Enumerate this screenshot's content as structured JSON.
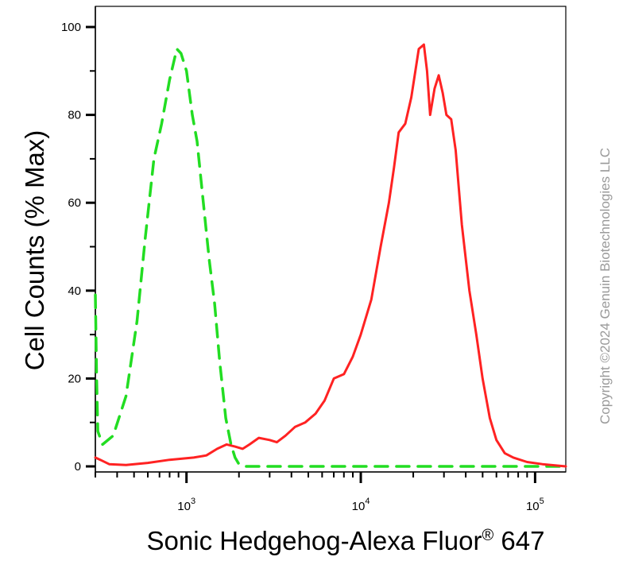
{
  "chart_data": {
    "type": "line",
    "title": "",
    "xlabel_main": "Sonic Hedgehog-Alexa Fluor",
    "xlabel_sup": "®",
    "xlabel_tail": " 647",
    "ylabel": "Cell Counts (% Max)",
    "x_scale": "log",
    "xlim": [
      300,
      150000
    ],
    "ylim": [
      0,
      105
    ],
    "yticks": [
      0,
      20,
      40,
      60,
      80,
      100
    ],
    "yticklabels": [
      "0",
      "20",
      "40",
      "60",
      "80",
      "100"
    ],
    "xticks": [
      1000,
      10000,
      100000
    ],
    "xticklabels": [
      {
        "base": "10",
        "exp": "3"
      },
      {
        "base": "10",
        "exp": "4"
      },
      {
        "base": "10",
        "exp": "5"
      }
    ],
    "grid": false,
    "series": [
      {
        "style": "dashed",
        "color": "#22dd22",
        "points": [
          [
            300,
            39
          ],
          [
            305,
            20
          ],
          [
            310,
            8
          ],
          [
            330,
            5
          ],
          [
            380,
            7
          ],
          [
            450,
            16
          ],
          [
            520,
            33
          ],
          [
            580,
            52
          ],
          [
            650,
            70
          ],
          [
            720,
            78
          ],
          [
            800,
            88
          ],
          [
            880,
            95
          ],
          [
            930,
            94
          ],
          [
            1000,
            90
          ],
          [
            1080,
            80
          ],
          [
            1150,
            74
          ],
          [
            1250,
            60
          ],
          [
            1350,
            47
          ],
          [
            1450,
            37
          ],
          [
            1550,
            24
          ],
          [
            1680,
            11
          ],
          [
            1800,
            5
          ],
          [
            1900,
            2
          ],
          [
            2000,
            0.5
          ],
          [
            2200,
            0
          ],
          [
            150000,
            0
          ]
        ]
      },
      {
        "style": "solid",
        "color": "#ff2222",
        "points": [
          [
            300,
            2
          ],
          [
            320,
            1.5
          ],
          [
            360,
            0.5
          ],
          [
            450,
            0.3
          ],
          [
            600,
            0.8
          ],
          [
            800,
            1.5
          ],
          [
            1100,
            2
          ],
          [
            1300,
            2.5
          ],
          [
            1500,
            4
          ],
          [
            1700,
            5
          ],
          [
            1900,
            4.5
          ],
          [
            2100,
            4
          ],
          [
            2300,
            5
          ],
          [
            2600,
            6.5
          ],
          [
            3000,
            6
          ],
          [
            3300,
            5.5
          ],
          [
            3700,
            7
          ],
          [
            4200,
            9
          ],
          [
            4800,
            10
          ],
          [
            5500,
            12
          ],
          [
            6200,
            15
          ],
          [
            7000,
            20
          ],
          [
            8000,
            21
          ],
          [
            9000,
            25
          ],
          [
            10000,
            30
          ],
          [
            11500,
            38
          ],
          [
            13000,
            50
          ],
          [
            14500,
            60
          ],
          [
            15500,
            68
          ],
          [
            16500,
            76
          ],
          [
            18000,
            78
          ],
          [
            19500,
            84
          ],
          [
            21500,
            95
          ],
          [
            23000,
            96
          ],
          [
            24000,
            90
          ],
          [
            25000,
            80
          ],
          [
            26500,
            86
          ],
          [
            28000,
            89
          ],
          [
            29500,
            85
          ],
          [
            31000,
            80
          ],
          [
            33000,
            79
          ],
          [
            35000,
            72
          ],
          [
            38000,
            55
          ],
          [
            42000,
            40
          ],
          [
            46000,
            30
          ],
          [
            50000,
            20
          ],
          [
            55000,
            11
          ],
          [
            60000,
            6
          ],
          [
            67000,
            3
          ],
          [
            75000,
            2
          ],
          [
            90000,
            1
          ],
          [
            110000,
            0.5
          ],
          [
            150000,
            0
          ]
        ]
      }
    ]
  },
  "copyright": "Copyright ©2024 Genuin Biotechnologies LLC"
}
